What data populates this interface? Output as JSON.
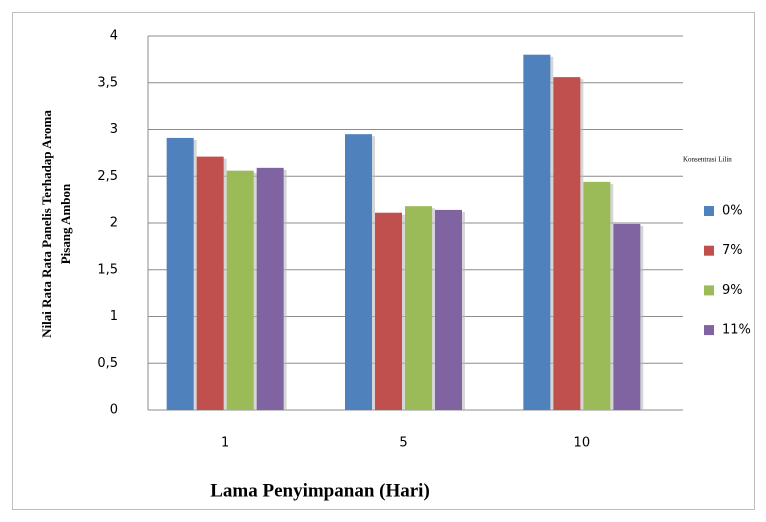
{
  "chart_data": {
    "type": "bar",
    "ylabel": [
      "Nilai Rata Rata Panelis Terhadap  Aroma",
      "Pisang Ambon"
    ],
    "xlabel": "Lama Penyimpanan (Hari)",
    "legend_title": "Konsentrasi Lilin",
    "legend": "right",
    "grid": true,
    "categories": [
      "1",
      "5",
      "10"
    ],
    "series": [
      {
        "name": "0%",
        "color": "#4f81bd",
        "values": [
          2.91,
          2.95,
          3.8
        ]
      },
      {
        "name": "7%",
        "color": "#c0504d",
        "values": [
          2.71,
          2.11,
          3.56
        ]
      },
      {
        "name": "9%",
        "color": "#9bbb59",
        "values": [
          2.56,
          2.18,
          2.44
        ]
      },
      {
        "name": "11%",
        "color": "#8064a2",
        "values": [
          2.59,
          2.14,
          1.99
        ]
      }
    ],
    "ylim": [
      0,
      4
    ],
    "yticks": [
      0,
      {
        "value": 0.5,
        "label": "0,5"
      },
      1,
      {
        "value": 1.5,
        "label": "1,5"
      },
      2,
      {
        "value": 2.5,
        "label": "2,5"
      },
      3,
      {
        "value": 3.5,
        "label": "3,5"
      },
      4
    ]
  }
}
